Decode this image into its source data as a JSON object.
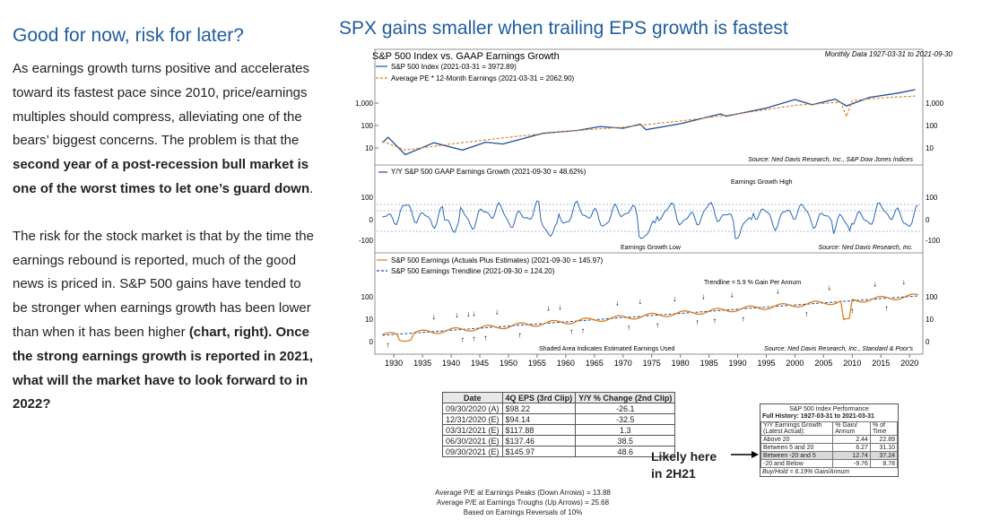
{
  "left": {
    "heading": "Good for now, risk for later?",
    "p1_a": "As earnings growth turns positive and accelerates toward its fastest pace since 2010, price/earnings multiples should compress, alleviating one of the bears’ biggest concerns. The problem is that the ",
    "p1_b": "second year of a post-recession bull market is one of the worst times to let one’s guard down",
    "p1_c": ".",
    "p2_a": "The risk for the stock market is that by the time the earnings rebound is reported, much of the good news is priced in. S&P 500 gains have tended to be stronger when earnings growth has been lower than when it has been higher ",
    "p2_b": "(chart, right). Once the strong earnings growth is reported in 2021, what will the market have to look forward to in 2022?"
  },
  "title": "SPX gains smaller when trailing EPS growth is fastest",
  "chart_data": [
    {
      "type": "line",
      "title": "S&P 500 Index vs. GAAP Earnings Growth",
      "subtitle": "Monthly Data 1927-03-31 to 2021-09-30",
      "scale": "log",
      "ytick_labels": [
        "1,000",
        "100",
        "10"
      ],
      "series": [
        {
          "name": "S&P 500 Index (2021-03-31 = 3972.89)",
          "color": "#1f4e9c",
          "x": [
            1928,
            1929,
            1932,
            1937,
            1942,
            1946,
            1949,
            1956,
            1962,
            1966,
            1970,
            1973,
            1974,
            1980,
            1987,
            1988,
            1995,
            2000,
            2003,
            2007,
            2009,
            2013,
            2018,
            2021
          ],
          "values": [
            17,
            30,
            5,
            17,
            8,
            18,
            15,
            45,
            60,
            90,
            75,
            115,
            65,
            120,
            330,
            260,
            600,
            1450,
            850,
            1500,
            750,
            1800,
            2800,
            3973
          ]
        },
        {
          "name": "Average PE * 12-Month Earnings (2021-03-31 = 2062.90)",
          "color": "#e07b1a",
          "dash": true,
          "x": [
            1928,
            1932,
            1940,
            1950,
            1960,
            1970,
            1980,
            1990,
            2000,
            2008,
            2009,
            2010,
            2015,
            2021
          ],
          "values": [
            20,
            8,
            15,
            30,
            55,
            85,
            160,
            330,
            800,
            1100,
            250,
            1300,
            1700,
            2063
          ]
        }
      ],
      "source": "Source: Ned Davis Research, Inc., S&P Dow Jones Indices"
    },
    {
      "type": "line",
      "title": "Y/Y S&P 500 GAAP Earnings Growth (2021-09-30 = 48.62%)",
      "ytick_labels": [
        "100",
        "0",
        "-100"
      ],
      "annotations": [
        "Earnings Growth High",
        "Earnings Growth Low"
      ],
      "source": "Source: Ned Davis Research, Inc."
    },
    {
      "type": "line",
      "scale": "log",
      "ytick_labels": [
        "100",
        "10",
        "0"
      ],
      "series": [
        {
          "name": "S&P 500 Earnings (Actuals Plus Estimates) (2021-09-30 = 145.97)",
          "color": "#e07b1a"
        },
        {
          "name": "S&P 500 Earnings Trendline (2021-09-30 = 124.20)",
          "color": "#1f4e9c",
          "dash": true
        }
      ],
      "annotations": [
        "Trendline = 5.9 % Gain Per Annum",
        "Shaded Area Indicates Estimated Earnings Used"
      ],
      "source": "Source: Ned Davis Research, Inc., Standard & Poor's"
    }
  ],
  "x_axis": {
    "ticks": [
      "1930",
      "1935",
      "1940",
      "1945",
      "1950",
      "1955",
      "1960",
      "1965",
      "1970",
      "1975",
      "1980",
      "1985",
      "1990",
      "1995",
      "2000",
      "2005",
      "2010",
      "2015",
      "2020"
    ]
  },
  "eps_table": {
    "headers": [
      "Date",
      "4Q EPS (3rd Clip)",
      "Y/Y % Change (2nd Clip)"
    ],
    "rows": [
      [
        "09/30/2020 (A)",
        "$98.22",
        "-26.1"
      ],
      [
        "12/31/2020 (E)",
        "$94.14",
        "-32.5"
      ],
      [
        "03/31/2021 (E)",
        "$117.88",
        "1.3"
      ],
      [
        "06/30/2021 (E)",
        "$137.46",
        "38.5"
      ],
      [
        "09/30/2021 (E)",
        "$145.97",
        "48.6"
      ]
    ]
  },
  "averages": {
    "peaks": "Average P/E at Earnings Peaks (Down Arrows) = 13.88",
    "troughs": "Average P/E at Earnings Troughs (Up Arrows) = 25.68",
    "basis": "Based on Earnings Reversals of 10%"
  },
  "callout": {
    "line1": "Likely here",
    "line2": "in 2H21"
  },
  "perf_table": {
    "title": "S&P 500 Index Performance",
    "subtitle": "Full History: 1927-03-31 to 2021-03-31",
    "headers": [
      "Y/Y Earnings Growth (Latest Actual):",
      "% Gain/ Annum",
      "% of Time"
    ],
    "rows": [
      [
        "Above 20",
        "2.44",
        "22.89"
      ],
      [
        "Between 5 and 20",
        "6.27",
        "31.10"
      ],
      [
        "Between -20 and 5",
        "12.74",
        "37.24"
      ],
      [
        "-20 and Below",
        "-9.76",
        "8.78"
      ]
    ],
    "buy_hold": "Buy/Hold = 6.19% Gain/Annum"
  },
  "colors": {
    "accent": "#1f5c9e",
    "sp500": "#1f4e9c",
    "earnings": "#e07b1a"
  }
}
